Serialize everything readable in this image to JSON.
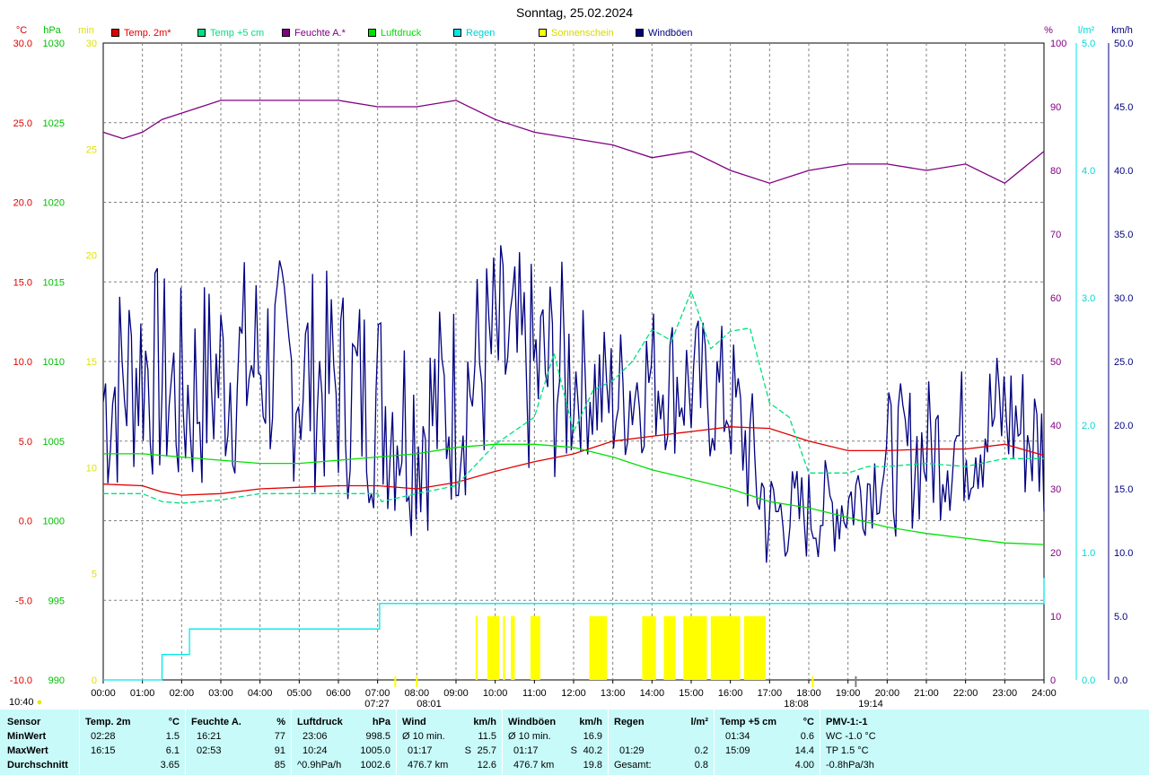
{
  "title": "Sonntag, 25.02.2024",
  "legend": [
    {
      "label": "Temp. 2m*",
      "color": "#e00000"
    },
    {
      "label": "Temp +5 cm",
      "color": "#00e080"
    },
    {
      "label": "Feuchte A.*",
      "color": "#800080"
    },
    {
      "label": "Luftdruck",
      "color": "#00e000"
    },
    {
      "label": "Regen",
      "color": "#00e8e8"
    },
    {
      "label": "Sonnenschein",
      "color": "#ffff00"
    },
    {
      "label": "Windböen",
      "color": "#000080"
    }
  ],
  "axis_units": {
    "temp": "°C",
    "press": "hPa",
    "sun": "min",
    "hum": "%",
    "rain": "l/m²",
    "wind": "km/h"
  },
  "sun_markers": {
    "sunrise": "07:27",
    "sunset": "18:08",
    "moonrise": "08:01",
    "moonset": "19:14",
    "now": "10:40"
  },
  "chart_data": {
    "type": "line",
    "x_range": [
      0,
      24
    ],
    "x_ticks": [
      "00:00",
      "01:00",
      "02:00",
      "03:00",
      "04:00",
      "05:00",
      "06:00",
      "07:00",
      "08:00",
      "09:00",
      "10:00",
      "11:00",
      "12:00",
      "13:00",
      "14:00",
      "15:00",
      "16:00",
      "17:00",
      "18:00",
      "19:00",
      "20:00",
      "21:00",
      "22:00",
      "23:00",
      "24:00"
    ],
    "axes": {
      "temp": {
        "label": "°C",
        "ylim": [
          -10,
          30
        ],
        "ticks": [
          "-10.0",
          "-5.0",
          "0.0",
          "5.0",
          "10.0",
          "15.0",
          "20.0",
          "25.0",
          "30.0"
        ]
      },
      "press": {
        "label": "hPa",
        "ylim": [
          990,
          1030
        ],
        "ticks": [
          "990",
          "995",
          "1000",
          "1005",
          "1010",
          "1015",
          "1020",
          "1025",
          "1030"
        ]
      },
      "sun": {
        "label": "min",
        "ylim": [
          0,
          30
        ],
        "ticks": [
          "0",
          "5",
          "10",
          "15",
          "20",
          "25",
          "30"
        ]
      },
      "hum": {
        "label": "%",
        "ylim": [
          0,
          100
        ],
        "ticks": [
          "0",
          "10",
          "20",
          "30",
          "40",
          "50",
          "60",
          "70",
          "80",
          "90",
          "100"
        ]
      },
      "rain": {
        "label": "l/m²",
        "ylim": [
          0,
          5
        ],
        "ticks": [
          "0.0",
          "1.0",
          "2.0",
          "3.0",
          "4.0",
          "5.0"
        ]
      },
      "wind": {
        "label": "km/h",
        "ylim": [
          0,
          50
        ],
        "ticks": [
          "0.0",
          "5.0",
          "10.0",
          "15.0",
          "20.0",
          "25.0",
          "30.0",
          "35.0",
          "40.0",
          "45.0",
          "50.0"
        ]
      }
    },
    "series": [
      {
        "name": "Temp. 2m*",
        "axis": "temp",
        "color": "#e00000",
        "points": [
          [
            0,
            2.3
          ],
          [
            1,
            2.2
          ],
          [
            1.5,
            1.8
          ],
          [
            2,
            1.6
          ],
          [
            3,
            1.7
          ],
          [
            4,
            2.0
          ],
          [
            5,
            2.1
          ],
          [
            6,
            2.2
          ],
          [
            7,
            2.2
          ],
          [
            8,
            2.0
          ],
          [
            9,
            2.4
          ],
          [
            10,
            3.1
          ],
          [
            11,
            3.7
          ],
          [
            12,
            4.2
          ],
          [
            13,
            5.0
          ],
          [
            14,
            5.3
          ],
          [
            15,
            5.6
          ],
          [
            16,
            5.9
          ],
          [
            17,
            5.8
          ],
          [
            18,
            5.0
          ],
          [
            19,
            4.4
          ],
          [
            20,
            4.4
          ],
          [
            21,
            4.5
          ],
          [
            22,
            4.5
          ],
          [
            23,
            4.8
          ],
          [
            24,
            4.1
          ]
        ]
      },
      {
        "name": "Temp +5 cm",
        "axis": "temp",
        "color": "#00e080",
        "points": [
          [
            0,
            1.7
          ],
          [
            1,
            1.7
          ],
          [
            1.5,
            1.2
          ],
          [
            2,
            1.1
          ],
          [
            3,
            1.3
          ],
          [
            4,
            1.7
          ],
          [
            5,
            1.7
          ],
          [
            6,
            1.7
          ],
          [
            7,
            1.7
          ],
          [
            7.1,
            1.2
          ],
          [
            8,
            1.7
          ],
          [
            9,
            2.2
          ],
          [
            10,
            4.8
          ],
          [
            11,
            6.5
          ],
          [
            11.5,
            10.5
          ],
          [
            12,
            5.6
          ],
          [
            12.5,
            8.2
          ],
          [
            13,
            8.8
          ],
          [
            13.5,
            10.0
          ],
          [
            14,
            12.0
          ],
          [
            14.5,
            11.3
          ],
          [
            15,
            14.4
          ],
          [
            15.5,
            10.8
          ],
          [
            16,
            11.9
          ],
          [
            16.5,
            12.1
          ],
          [
            17,
            7.4
          ],
          [
            17.5,
            6.5
          ],
          [
            18,
            3.0
          ],
          [
            19,
            3.0
          ],
          [
            19.5,
            3.4
          ],
          [
            20,
            3.4
          ],
          [
            21,
            3.6
          ],
          [
            22,
            3.4
          ],
          [
            23,
            3.9
          ],
          [
            24,
            3.9
          ]
        ]
      },
      {
        "name": "Feuchte A.*",
        "axis": "hum",
        "color": "#800080",
        "points": [
          [
            0,
            86
          ],
          [
            0.5,
            85
          ],
          [
            1,
            86
          ],
          [
            1.5,
            88
          ],
          [
            2,
            89
          ],
          [
            3,
            91
          ],
          [
            4,
            91
          ],
          [
            5,
            91
          ],
          [
            6,
            91
          ],
          [
            7,
            90
          ],
          [
            8,
            90
          ],
          [
            9,
            91
          ],
          [
            10,
            88
          ],
          [
            11,
            86
          ],
          [
            12,
            85
          ],
          [
            13,
            84
          ],
          [
            14,
            82
          ],
          [
            15,
            83
          ],
          [
            16,
            80
          ],
          [
            17,
            78
          ],
          [
            18,
            80
          ],
          [
            19,
            81
          ],
          [
            20,
            81
          ],
          [
            21,
            80
          ],
          [
            22,
            81
          ],
          [
            23,
            78
          ],
          [
            24,
            83
          ]
        ]
      },
      {
        "name": "Luftdruck",
        "axis": "press",
        "color": "#00e000",
        "points": [
          [
            0,
            1004.2
          ],
          [
            1,
            1004.2
          ],
          [
            2,
            1004.0
          ],
          [
            3,
            1003.8
          ],
          [
            4,
            1003.6
          ],
          [
            5,
            1003.6
          ],
          [
            6,
            1003.8
          ],
          [
            7,
            1004.0
          ],
          [
            8,
            1004.2
          ],
          [
            9,
            1004.6
          ],
          [
            10,
            1004.8
          ],
          [
            11,
            1004.8
          ],
          [
            12,
            1004.6
          ],
          [
            13,
            1004.0
          ],
          [
            14,
            1003.2
          ],
          [
            15,
            1002.6
          ],
          [
            16,
            1002.0
          ],
          [
            17,
            1001.2
          ],
          [
            18,
            1000.8
          ],
          [
            19,
            1000.2
          ],
          [
            20,
            999.6
          ],
          [
            21,
            999.2
          ],
          [
            22,
            998.9
          ],
          [
            23,
            998.6
          ],
          [
            24,
            998.5
          ]
        ]
      },
      {
        "name": "Regen",
        "axis": "rain",
        "color": "#00e8e8",
        "points": [
          [
            0,
            0
          ],
          [
            1.5,
            0
          ],
          [
            1.5,
            0.2
          ],
          [
            2.2,
            0.2
          ],
          [
            2.2,
            0.4
          ],
          [
            7.05,
            0.4
          ],
          [
            7.05,
            0.6
          ],
          [
            24,
            0.6
          ],
          [
            24,
            0.8
          ]
        ]
      },
      {
        "name": "Windböen",
        "axis": "wind",
        "color": "#000080",
        "summary": {
          "max": 40.2,
          "avg": 19.8
        }
      }
    ],
    "sunshine_blocks": [
      [
        9.5,
        9.55
      ],
      [
        9.8,
        10.1
      ],
      [
        10.2,
        10.25
      ],
      [
        10.4,
        10.5
      ],
      [
        10.9,
        11.15
      ],
      [
        12.4,
        12.85
      ],
      [
        13.75,
        14.1
      ],
      [
        14.3,
        14.6
      ],
      [
        14.8,
        15.4
      ],
      [
        15.5,
        16.25
      ],
      [
        16.35,
        16.9
      ]
    ]
  },
  "stats": {
    "sensor": {
      "header": "Sensor",
      "rows": [
        "MinWert",
        "MaxWert",
        "Durchschnitt"
      ]
    },
    "temp2m": {
      "header": "Temp. 2m",
      "unit": "°C",
      "min_t": "02:28",
      "min": "1.5",
      "max_t": "16:15",
      "max": "6.1",
      "avg": "3.65"
    },
    "feuchte": {
      "header": "Feuchte A.",
      "unit": "%",
      "min_t": "16:21",
      "min": "77",
      "max_t": "02:53",
      "max": "91",
      "avg": "85"
    },
    "luftdruck": {
      "header": "Luftdruck",
      "unit": "hPa",
      "min_t": "23:06",
      "min": "998.5",
      "max_t": "10:24",
      "max": "1005.0",
      "avg_l": "^0.9hPa/h",
      "avg": "1002.6"
    },
    "wind": {
      "header": "Wind",
      "unit": "km/h",
      "min_l": "Ø 10 min.",
      "min": "11.5",
      "max_t": "01:17",
      "max_dir": "S",
      "max": "25.7",
      "avg_l": "476.7 km",
      "avg": "12.6"
    },
    "boeen": {
      "header": "Windböen",
      "unit": "km/h",
      "min_l": "Ø 10 min.",
      "min": "16.9",
      "max_t": "01:17",
      "max_dir": "S",
      "max": "40.2",
      "avg_l": "476.7 km",
      "avg": "19.8"
    },
    "regen": {
      "header": "Regen",
      "unit": "l/m²",
      "max_t": "01:29",
      "max": "0.2",
      "avg_l": "Gesamt:",
      "avg": "0.8"
    },
    "temp5": {
      "header": "Temp +5 cm",
      "unit": "°C",
      "min_t": "01:34",
      "min": "0.6",
      "max_t": "15:09",
      "max": "14.4",
      "avg": "4.00"
    },
    "pmv": {
      "header": "PMV-1:-1",
      "min": "WC -1.0 °C",
      "max": "TP 1.5 °C",
      "avg": "-0.8hPa/3h"
    }
  }
}
